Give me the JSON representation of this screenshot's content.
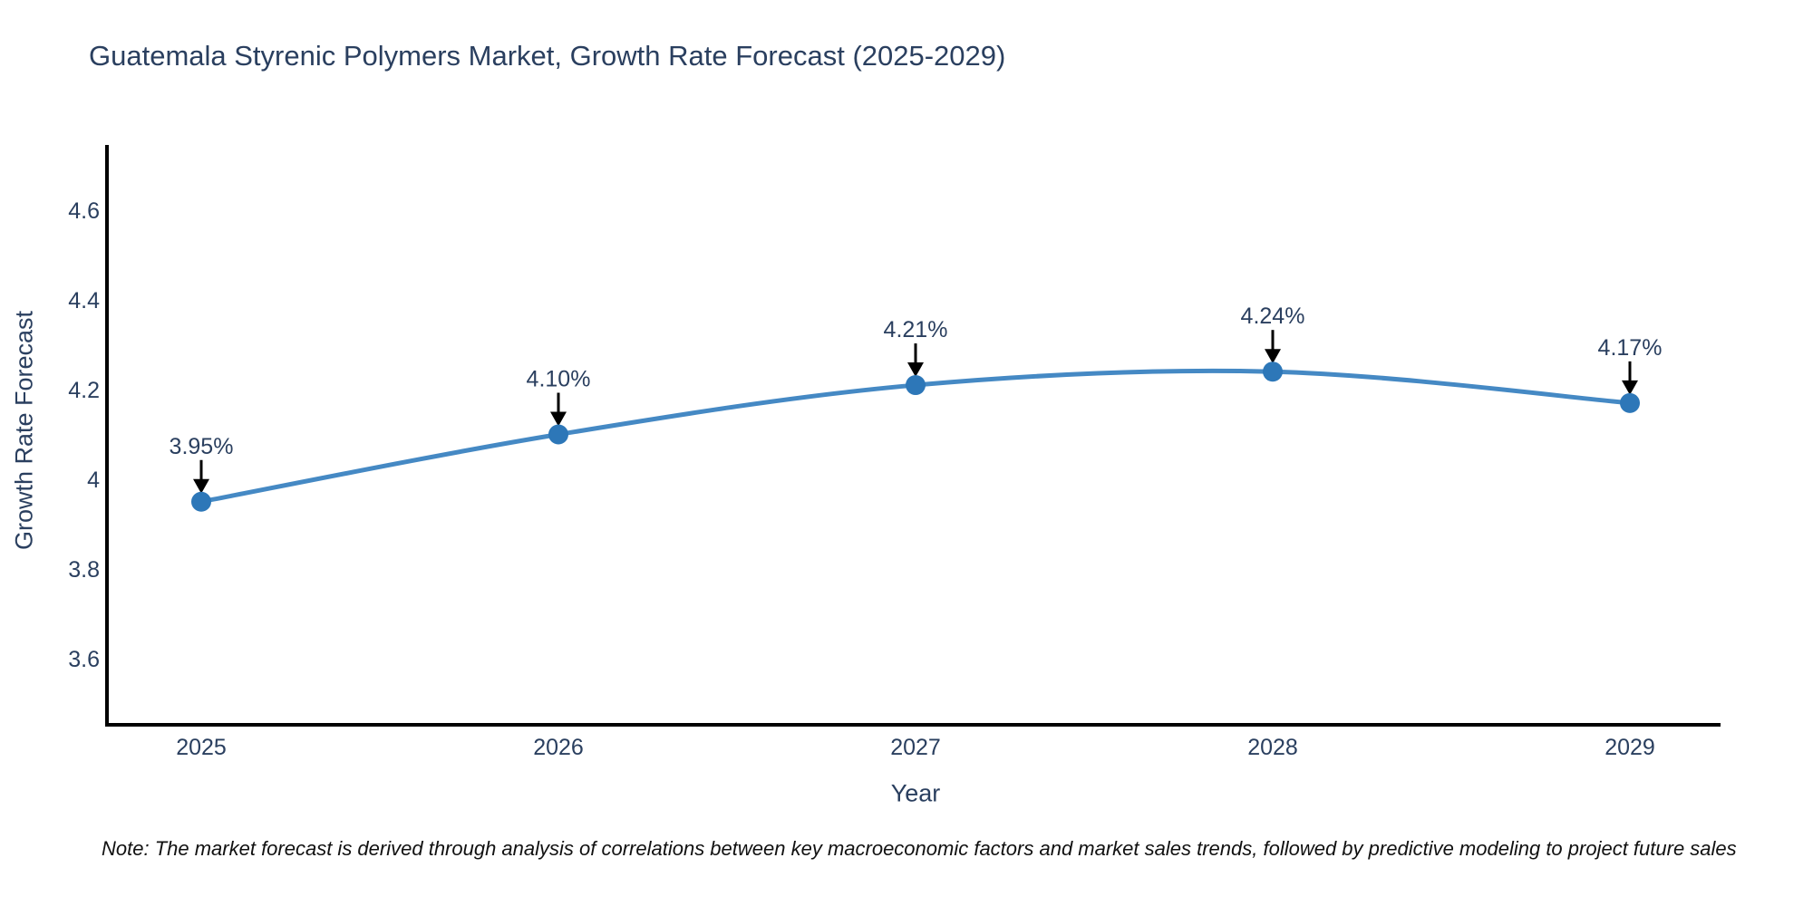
{
  "title": "Guatemala Styrenic Polymers Market, Growth Rate Forecast (2025-2029)",
  "note": "Note: The market forecast is derived through analysis of correlations between key macroeconomic factors and market sales trends, followed by predictive modeling to project future sales",
  "chart_data": {
    "type": "line",
    "title": "Guatemala Styrenic Polymers Market, Growth Rate Forecast (2025-2029)",
    "xlabel": "Year",
    "ylabel": "Growth Rate Forecast",
    "x": [
      2025,
      2026,
      2027,
      2028,
      2029
    ],
    "x_tick_labels": [
      "2025",
      "2026",
      "2027",
      "2028",
      "2029"
    ],
    "series": [
      {
        "name": "Growth Rate Forecast",
        "values": [
          3.95,
          4.1,
          4.21,
          4.24,
          4.17
        ]
      }
    ],
    "point_labels": [
      "3.95%",
      "4.10%",
      "4.21%",
      "4.24%",
      "4.17%"
    ],
    "y_ticks": [
      3.6,
      3.8,
      4.0,
      4.2,
      4.4,
      4.6
    ],
    "y_tick_labels": [
      "3.6",
      "3.8",
      "4",
      "4.2",
      "4.4",
      "4.6"
    ],
    "ylim": [
      3.4525,
      4.7455
    ],
    "grid": false,
    "legend": "none",
    "line_shape": "spline",
    "colors": {
      "line": "#4589c4",
      "marker": "#2d77b8",
      "axis": "#000000",
      "text": "#2a3f5f",
      "annotation_arrow": "#000000",
      "background": "#ffffff"
    }
  }
}
